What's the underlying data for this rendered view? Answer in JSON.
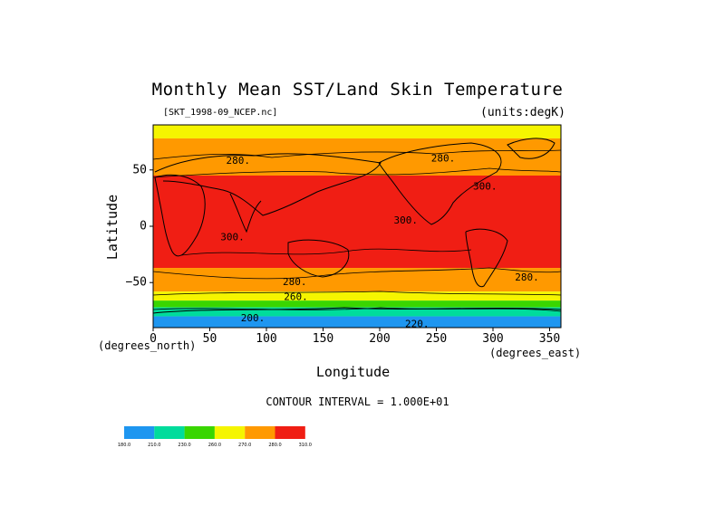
{
  "chart_data": {
    "type": "heatmap",
    "title": "Monthly Mean SST/Land Skin Temperature",
    "source_label": "[SKT_1998-09_NCEP.nc]",
    "units_label": "(units:degK)",
    "xlabel": "Longitude",
    "ylabel": "Latitude",
    "x_unit_label": "(degrees_east)",
    "y_unit_label": "(degrees_north)",
    "xlim": [
      0,
      360
    ],
    "ylim": [
      -90,
      90
    ],
    "x_ticks": [
      0,
      50,
      100,
      150,
      200,
      250,
      300,
      350
    ],
    "y_ticks": [
      50,
      0,
      -50
    ],
    "y_tick_labels": [
      "50",
      "0",
      "−50"
    ],
    "contour_interval_text": "CONTOUR INTERVAL = 1.000E+01",
    "contour_labels": [
      {
        "text": "280.",
        "lon": 75,
        "lat": 58
      },
      {
        "text": "280.",
        "lon": 256,
        "lat": 60
      },
      {
        "text": "300.",
        "lon": 293,
        "lat": 35
      },
      {
        "text": "300.",
        "lon": 223,
        "lat": 5
      },
      {
        "text": "300.",
        "lon": 70,
        "lat": -10
      },
      {
        "text": "280.",
        "lon": 125,
        "lat": -50
      },
      {
        "text": "280.",
        "lon": 330,
        "lat": -46
      },
      {
        "text": "260.",
        "lon": 126,
        "lat": -63
      },
      {
        "text": "200.",
        "lon": 88,
        "lat": -82
      },
      {
        "text": "220.",
        "lon": 233,
        "lat": -87
      }
    ],
    "legend": {
      "bins": [
        {
          "label": "180.0",
          "color": "#1e96f0"
        },
        {
          "label": "210.0",
          "color": "#00dc9c"
        },
        {
          "label": "230.0",
          "color": "#39d600"
        },
        {
          "label": "260.0",
          "color": "#f5f500"
        },
        {
          "label": "270.0",
          "color": "#ff9900"
        },
        {
          "label": "280.0",
          "color": "#f01e14"
        }
      ],
      "last_label": "310.0"
    },
    "bands": [
      {
        "lat_top": 90,
        "lat_bot": 78,
        "color": "#f5f500"
      },
      {
        "lat_top": 78,
        "lat_bot": 45,
        "color": "#ff9900"
      },
      {
        "lat_top": 45,
        "lat_bot": -37,
        "color": "#f01e14"
      },
      {
        "lat_top": -37,
        "lat_bot": -58,
        "color": "#ff9900"
      },
      {
        "lat_top": -58,
        "lat_bot": -66,
        "color": "#f5f500"
      },
      {
        "lat_top": -66,
        "lat_bot": -72,
        "color": "#39d600"
      },
      {
        "lat_top": -72,
        "lat_bot": -80,
        "color": "#00dc9c"
      },
      {
        "lat_top": -80,
        "lat_bot": -90,
        "color": "#1e96f0"
      }
    ]
  }
}
